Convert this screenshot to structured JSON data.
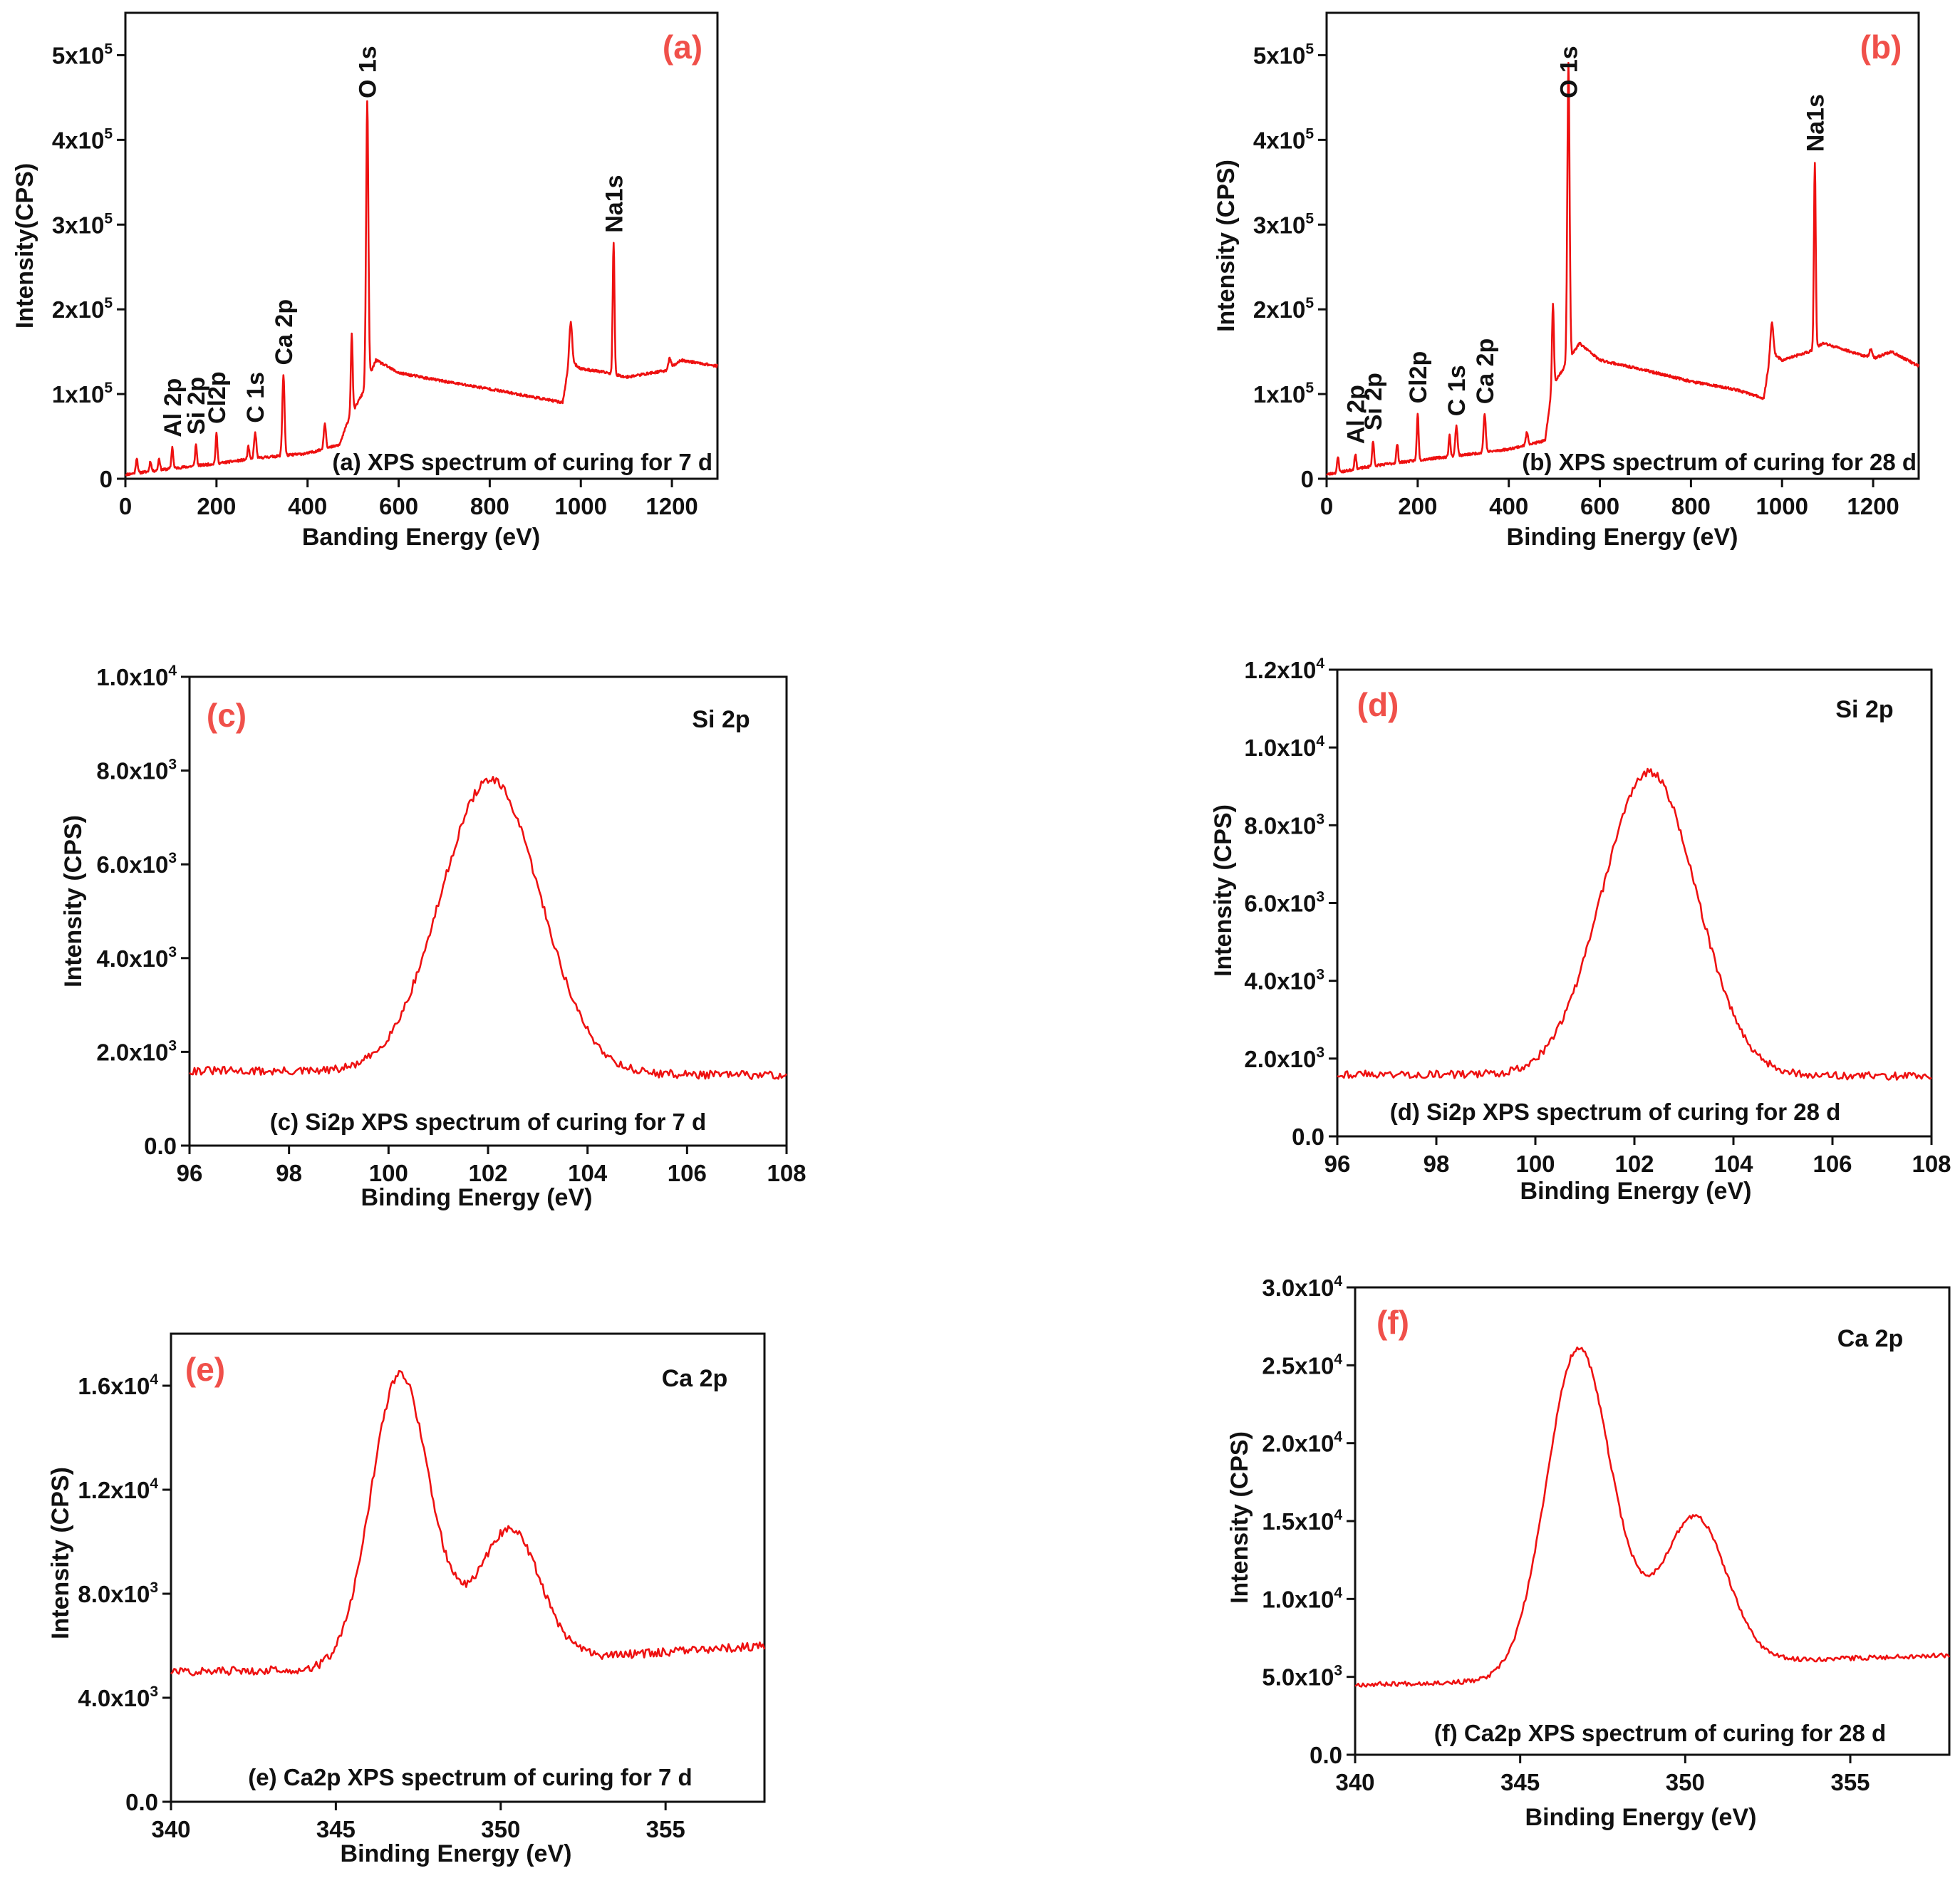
{
  "colors": {
    "line": "#ee1111",
    "panel_label": "#f0504a",
    "axis": "#111111"
  },
  "chart_data": [
    {
      "id": "a",
      "type": "line",
      "panel_label": "(a)",
      "caption": "(a) XPS spectrum of curing for 7 d",
      "xlabel": "Banding Energy (eV)",
      "ylabel": "Intensity(CPS)",
      "xlim": [
        0,
        1300
      ],
      "ylim": [
        0,
        550000
      ],
      "xticks": [
        0,
        200,
        400,
        600,
        800,
        1000,
        1200
      ],
      "yticks": [
        {
          "v": 0,
          "m": "0",
          "e": ""
        },
        {
          "v": 100000,
          "m": "1x10",
          "e": "5"
        },
        {
          "v": 200000,
          "m": "2x10",
          "e": "5"
        },
        {
          "v": 300000,
          "m": "3x10",
          "e": "5"
        },
        {
          "v": 400000,
          "m": "4x10",
          "e": "5"
        },
        {
          "v": 500000,
          "m": "5x10",
          "e": "5"
        }
      ],
      "peak_labels": [
        {
          "text": "Al 2p",
          "x": 103
        },
        {
          "text": "Si 2p",
          "x": 155
        },
        {
          "text": "Cl2p",
          "x": 200
        },
        {
          "text": "C 1s",
          "x": 285
        },
        {
          "text": "Ca 2p",
          "x": 347
        },
        {
          "text": "O 1s",
          "x": 531
        },
        {
          "text": "Na1s",
          "x": 1072
        }
      ],
      "spectrum": {
        "kind": "survey",
        "seed": 11,
        "noise": 1500,
        "baseline": [
          [
            0,
            5000
          ],
          [
            100,
            12000
          ],
          [
            200,
            18000
          ],
          [
            300,
            25000
          ],
          [
            400,
            30000
          ],
          [
            470,
            40000
          ],
          [
            490,
            70000
          ],
          [
            520,
            100000
          ],
          [
            550,
            140000
          ],
          [
            600,
            125000
          ],
          [
            700,
            115000
          ],
          [
            800,
            106000
          ],
          [
            900,
            96000
          ],
          [
            960,
            90000
          ],
          [
            975,
            140000
          ],
          [
            1000,
            130000
          ],
          [
            1060,
            125000
          ],
          [
            1100,
            120000
          ],
          [
            1190,
            128000
          ],
          [
            1220,
            140000
          ],
          [
            1300,
            133000
          ]
        ],
        "peaks": [
          [
            25,
            18000,
            2
          ],
          [
            55,
            12000,
            2
          ],
          [
            74,
            14000,
            2
          ],
          [
            103,
            25000,
            2
          ],
          [
            155,
            25000,
            2
          ],
          [
            200,
            35000,
            2
          ],
          [
            270,
            15000,
            2
          ],
          [
            285,
            30000,
            2.5
          ],
          [
            347,
            95000,
            2.5
          ],
          [
            438,
            30000,
            2.5
          ],
          [
            497,
            95000,
            2
          ],
          [
            531,
            330000,
            2.5
          ],
          [
            978,
            45000,
            3
          ],
          [
            1072,
            155000,
            2
          ],
          [
            1195,
            12000,
            3
          ]
        ]
      }
    },
    {
      "id": "b",
      "type": "line",
      "panel_label": "(b)",
      "caption": "(b) XPS spectrum of curing for 28 d",
      "xlabel": "Binding Energy (eV)",
      "ylabel": "Intensity (CPS)",
      "xlim": [
        0,
        1300
      ],
      "ylim": [
        0,
        550000
      ],
      "xticks": [
        0,
        200,
        400,
        600,
        800,
        1000,
        1200
      ],
      "yticks": [
        {
          "v": 0,
          "m": "0",
          "e": ""
        },
        {
          "v": 100000,
          "m": "1x10",
          "e": "5"
        },
        {
          "v": 200000,
          "m": "2x10",
          "e": "5"
        },
        {
          "v": 300000,
          "m": "3x10",
          "e": "5"
        },
        {
          "v": 400000,
          "m": "4x10",
          "e": "5"
        },
        {
          "v": 500000,
          "m": "5x10",
          "e": "5"
        }
      ],
      "peak_labels": [
        {
          "text": "Al 2p",
          "x": 63
        },
        {
          "text": "Si 2p",
          "x": 102
        },
        {
          "text": "Cl2p",
          "x": 200
        },
        {
          "text": "C 1s",
          "x": 285
        },
        {
          "text": "Ca 2p",
          "x": 347
        },
        {
          "text": "O 1s",
          "x": 531
        },
        {
          "text": "Na1s",
          "x": 1072
        }
      ],
      "spectrum": {
        "kind": "survey",
        "seed": 23,
        "noise": 1500,
        "baseline": [
          [
            0,
            5000
          ],
          [
            100,
            15000
          ],
          [
            200,
            22000
          ],
          [
            300,
            28000
          ],
          [
            400,
            35000
          ],
          [
            480,
            45000
          ],
          [
            495,
            110000
          ],
          [
            520,
            130000
          ],
          [
            555,
            160000
          ],
          [
            600,
            140000
          ],
          [
            700,
            128000
          ],
          [
            800,
            115000
          ],
          [
            900,
            105000
          ],
          [
            960,
            95000
          ],
          [
            975,
            150000
          ],
          [
            1000,
            140000
          ],
          [
            1060,
            150000
          ],
          [
            1090,
            160000
          ],
          [
            1200,
            142000
          ],
          [
            1240,
            150000
          ],
          [
            1300,
            133000
          ]
        ],
        "peaks": [
          [
            25,
            18000,
            2
          ],
          [
            63,
            18000,
            2
          ],
          [
            102,
            30000,
            2
          ],
          [
            155,
            22000,
            2
          ],
          [
            200,
            55000,
            2
          ],
          [
            270,
            25000,
            2
          ],
          [
            285,
            35000,
            2.5
          ],
          [
            347,
            45000,
            2.5
          ],
          [
            440,
            15000,
            2.5
          ],
          [
            497,
            95000,
            2
          ],
          [
            531,
            350000,
            2.5
          ],
          [
            978,
            35000,
            3
          ],
          [
            1072,
            220000,
            2
          ],
          [
            1195,
            10000,
            3
          ]
        ]
      }
    },
    {
      "id": "c",
      "type": "line",
      "panel_label": "(c)",
      "caption": "(c) Si2p XPS spectrum of curing for 7 d",
      "element_tag": "Si 2p",
      "xlabel": "Binding Energy (eV)",
      "ylabel": "Intensity (CPS)",
      "xlim": [
        96,
        108
      ],
      "ylim": [
        0,
        10000
      ],
      "xticks": [
        96,
        98,
        100,
        102,
        104,
        106,
        108
      ],
      "yticks": [
        {
          "v": 0,
          "m": "0.0",
          "e": ""
        },
        {
          "v": 2000,
          "m": "2.0x10",
          "e": "3"
        },
        {
          "v": 4000,
          "m": "4.0x10",
          "e": "3"
        },
        {
          "v": 6000,
          "m": "6.0x10",
          "e": "3"
        },
        {
          "v": 8000,
          "m": "8.0x10",
          "e": "3"
        },
        {
          "v": 10000,
          "m": "1.0x10",
          "e": "4"
        }
      ],
      "spectrum": {
        "kind": "hires",
        "seed": 31,
        "noise": 90,
        "n": 360,
        "base": [
          [
            96,
            1600
          ],
          [
            108,
            1500
          ]
        ],
        "peaks": [
          [
            102.05,
            6250,
            1.0
          ]
        ]
      }
    },
    {
      "id": "d",
      "type": "line",
      "panel_label": "(d)",
      "caption": "(d) Si2p XPS spectrum of curing for 28 d",
      "element_tag": "Si 2p",
      "xlabel": "Binding Energy (eV)",
      "ylabel": "Intensity (CPS)",
      "xlim": [
        96,
        108
      ],
      "ylim": [
        0,
        12000
      ],
      "xticks": [
        96,
        98,
        100,
        102,
        104,
        106,
        108
      ],
      "yticks": [
        {
          "v": 0,
          "m": "0.0",
          "e": ""
        },
        {
          "v": 2000,
          "m": "2.0x10",
          "e": "3"
        },
        {
          "v": 4000,
          "m": "4.0x10",
          "e": "3"
        },
        {
          "v": 6000,
          "m": "6.0x10",
          "e": "3"
        },
        {
          "v": 8000,
          "m": "8.0x10",
          "e": "3"
        },
        {
          "v": 10000,
          "m": "1.0x10",
          "e": "4"
        },
        {
          "v": 12000,
          "m": "1.2x10",
          "e": "4"
        }
      ],
      "spectrum": {
        "kind": "hires",
        "seed": 43,
        "noise": 100,
        "n": 360,
        "base": [
          [
            96,
            1600
          ],
          [
            108,
            1550
          ]
        ],
        "peaks": [
          [
            102.3,
            7800,
            0.95
          ]
        ]
      }
    },
    {
      "id": "e",
      "type": "line",
      "panel_label": "(e)",
      "caption": "(e) Ca2p XPS spectrum of curing for 7 d",
      "element_tag": "Ca 2p",
      "xlabel": "Binding Energy (eV)",
      "ylabel": "Intensity (CPS)",
      "xlim": [
        340,
        358
      ],
      "ylim": [
        0,
        18000
      ],
      "xticks": [
        340,
        345,
        350,
        355
      ],
      "yticks": [
        {
          "v": 0,
          "m": "0.0",
          "e": ""
        },
        {
          "v": 4000,
          "m": "4.0x10",
          "e": "3"
        },
        {
          "v": 8000,
          "m": "8.0x10",
          "e": "3"
        },
        {
          "v": 12000,
          "m": "1.2x10",
          "e": "4"
        },
        {
          "v": 16000,
          "m": "1.6x10",
          "e": "4"
        }
      ],
      "spectrum": {
        "kind": "hires",
        "seed": 57,
        "noise": 160,
        "n": 380,
        "base": [
          [
            340,
            5000
          ],
          [
            345,
            5100
          ],
          [
            353,
            5600
          ],
          [
            358,
            6000
          ]
        ],
        "peaks": [
          [
            346.9,
            10800,
            0.85
          ],
          [
            350.3,
            5000,
            0.9
          ],
          [
            348.2,
            1200,
            0.9
          ]
        ]
      }
    },
    {
      "id": "f",
      "type": "line",
      "panel_label": "(f)",
      "caption": "(f) Ca2p XPS spectrum of curing for 28 d",
      "element_tag": "Ca 2p",
      "xlabel": "Binding Energy (eV)",
      "ylabel": "Intensity (CPS)",
      "xlim": [
        340,
        358
      ],
      "ylim": [
        0,
        30000
      ],
      "xticks": [
        340,
        345,
        350,
        355
      ],
      "yticks": [
        {
          "v": 0,
          "m": "0.0",
          "e": ""
        },
        {
          "v": 5000,
          "m": "5.0x10",
          "e": "3"
        },
        {
          "v": 10000,
          "m": "1.0x10",
          "e": "4"
        },
        {
          "v": 15000,
          "m": "1.5x10",
          "e": "4"
        },
        {
          "v": 20000,
          "m": "2.0x10",
          "e": "4"
        },
        {
          "v": 25000,
          "m": "2.5x10",
          "e": "4"
        },
        {
          "v": 30000,
          "m": "3.0x10",
          "e": "4"
        }
      ],
      "spectrum": {
        "kind": "hires",
        "seed": 67,
        "noise": 150,
        "n": 380,
        "base": [
          [
            340,
            4500
          ],
          [
            344,
            4700
          ],
          [
            352,
            6000
          ],
          [
            358,
            6400
          ]
        ],
        "peaks": [
          [
            346.75,
            20800,
            0.95
          ],
          [
            350.3,
            9500,
            0.95
          ],
          [
            348.4,
            1500,
            0.8
          ]
        ]
      }
    }
  ]
}
